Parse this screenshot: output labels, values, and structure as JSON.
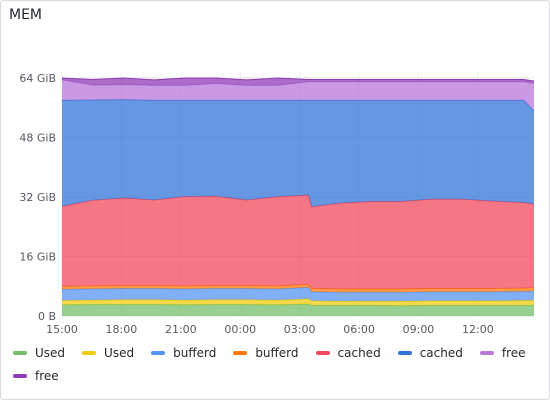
{
  "panel": {
    "title": "MEM"
  },
  "chart_data": {
    "type": "area",
    "stacked": true,
    "title": "MEM",
    "y_unit": "GiB",
    "ylim": [
      0,
      64
    ],
    "y_ticks": [
      {
        "value": 0,
        "label": "0 B"
      },
      {
        "value": 16,
        "label": "16 GiB"
      },
      {
        "value": 32,
        "label": "32 GiB"
      },
      {
        "value": 48,
        "label": "48 GiB"
      },
      {
        "value": 64,
        "label": "64 GiB"
      }
    ],
    "x_ticks": [
      "15:00",
      "18:00",
      "21:00",
      "00:00",
      "03:00",
      "06:00",
      "09:00",
      "12:00"
    ],
    "x": [
      "15:00",
      "16:30",
      "18:00",
      "19:30",
      "21:00",
      "22:30",
      "00:00",
      "01:30",
      "03:00",
      "03:10",
      "04:30",
      "06:00",
      "07:30",
      "09:00",
      "10:30",
      "12:00",
      "13:30",
      "14:00"
    ],
    "grid": true,
    "legend_position": "bottom",
    "series": [
      {
        "name": "Used",
        "color": "#73bf69",
        "values": [
          3.0,
          3.1,
          3.1,
          3.1,
          3.0,
          3.1,
          3.1,
          3.0,
          3.2,
          2.9,
          2.9,
          2.9,
          2.8,
          2.9,
          2.9,
          2.9,
          2.9,
          2.9
        ]
      },
      {
        "name": "Used",
        "color": "#f2cc0c",
        "values": [
          1.2,
          1.2,
          1.3,
          1.3,
          1.3,
          1.3,
          1.3,
          1.3,
          1.4,
          1.2,
          1.1,
          1.1,
          1.2,
          1.2,
          1.2,
          1.2,
          1.3,
          1.3
        ]
      },
      {
        "name": "bufferd",
        "color": "#5794f2",
        "values": [
          3.0,
          3.0,
          3.0,
          3.0,
          3.0,
          3.0,
          3.0,
          3.0,
          3.1,
          2.4,
          2.4,
          2.4,
          2.4,
          2.4,
          2.4,
          2.4,
          2.4,
          2.5
        ]
      },
      {
        "name": "bufferd",
        "color": "#ff780a",
        "values": [
          0.8,
          0.8,
          0.8,
          0.8,
          0.8,
          0.8,
          0.8,
          0.8,
          0.8,
          0.9,
          0.9,
          0.9,
          0.9,
          0.9,
          0.9,
          0.9,
          0.9,
          0.9
        ]
      },
      {
        "name": "cached",
        "color": "#f2495c",
        "values": [
          21.5,
          23.0,
          23.5,
          23.0,
          24.0,
          24.0,
          23.0,
          24.0,
          24.0,
          22.0,
          23.0,
          23.5,
          23.5,
          24.0,
          24.0,
          23.5,
          23.0,
          22.5
        ]
      },
      {
        "name": "cached",
        "color": "#3274d9",
        "values": [
          28.5,
          27.0,
          26.5,
          26.8,
          25.9,
          25.8,
          26.8,
          25.9,
          25.5,
          28.6,
          27.7,
          27.2,
          27.2,
          26.6,
          26.6,
          27.1,
          27.5,
          25.0
        ]
      },
      {
        "name": "free",
        "color": "#b877d9",
        "values": [
          5.5,
          4.0,
          4.0,
          4.0,
          4.0,
          4.5,
          4.0,
          4.0,
          5.0,
          5.0,
          5.0,
          5.0,
          5.0,
          5.0,
          5.0,
          5.0,
          5.0,
          7.5
        ]
      },
      {
        "name": "free",
        "color": "#8f3bb8",
        "values": [
          0.5,
          1.5,
          1.8,
          1.5,
          2.0,
          1.5,
          1.5,
          2.0,
          0.6,
          0.6,
          0.6,
          0.6,
          0.6,
          0.6,
          0.6,
          0.6,
          0.6,
          0.6
        ]
      }
    ]
  }
}
